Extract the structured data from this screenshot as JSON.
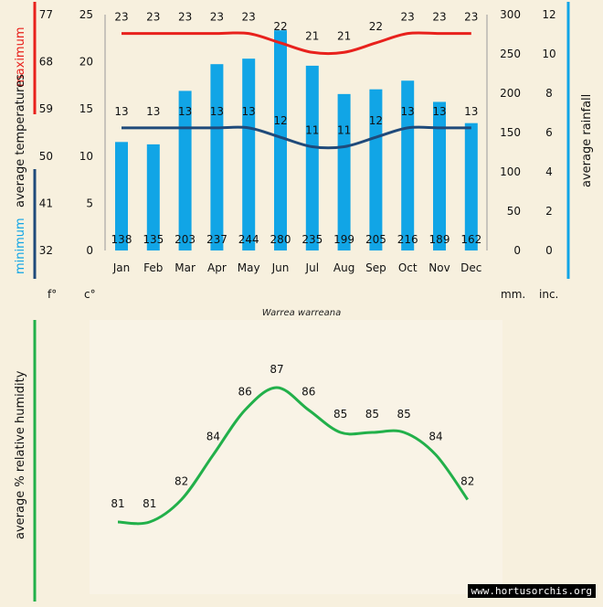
{
  "colors": {
    "max": "#e8211c",
    "min": "#1f4a7a",
    "rain": "#11a5e6",
    "humidity": "#22b04a",
    "background": "#f7f0de"
  },
  "labels": {
    "maximum": "maximum",
    "minimum": "minimum",
    "average_temperatures": "average  temperatures",
    "average_rainfall": "average  rainfall",
    "avg_rel_humidity": "average %  relative humidity",
    "unit_f": "f°",
    "unit_c": "c°",
    "unit_mm": "mm.",
    "unit_inc": "inc.",
    "species": "Warrea warreana",
    "watermark": "www.hortusorchis.org"
  },
  "chart_data": [
    {
      "type": "bar",
      "categories": [
        "Jan",
        "Feb",
        "Mar",
        "Apr",
        "May",
        "Jun",
        "Jul",
        "Aug",
        "Sep",
        "Oct",
        "Nov",
        "Dec"
      ],
      "series": [
        {
          "name": "average rainfall",
          "unit": "mm.",
          "values": [
            138,
            135,
            203,
            237,
            244,
            280,
            235,
            199,
            205,
            216,
            189,
            162
          ]
        },
        {
          "name": "maximum",
          "unit": "c°",
          "values": [
            23,
            23,
            23,
            23,
            23,
            22,
            21,
            21,
            22,
            23,
            23,
            23
          ]
        },
        {
          "name": "minimum",
          "unit": "c°",
          "values": [
            13,
            13,
            13,
            13,
            13,
            12,
            11,
            11,
            12,
            13,
            13,
            13
          ]
        }
      ],
      "axes": {
        "temp_f_ticks": [
          "77",
          "68",
          "59",
          "50",
          "41",
          "32"
        ],
        "temp_c_ticks": [
          25,
          20,
          15,
          10,
          5,
          0
        ],
        "rain_mm_ticks": [
          300,
          250,
          200,
          150,
          100,
          50,
          0
        ],
        "rain_inc_ticks": [
          12,
          10,
          8,
          6,
          4,
          2,
          0
        ],
        "temp_c_range": [
          0,
          25
        ],
        "rain_mm_range": [
          0,
          300
        ]
      }
    },
    {
      "type": "line",
      "categories": [
        "Jan",
        "Feb",
        "Mar",
        "Apr",
        "May",
        "Jun",
        "Jul",
        "Aug",
        "Sep",
        "Oct",
        "Nov",
        "Dec"
      ],
      "series": [
        {
          "name": "average % relative humidity",
          "values": [
            81,
            81,
            82,
            84,
            86,
            87,
            86,
            85,
            85,
            85,
            84,
            82
          ]
        }
      ],
      "ylim": [
        79,
        89
      ]
    }
  ]
}
